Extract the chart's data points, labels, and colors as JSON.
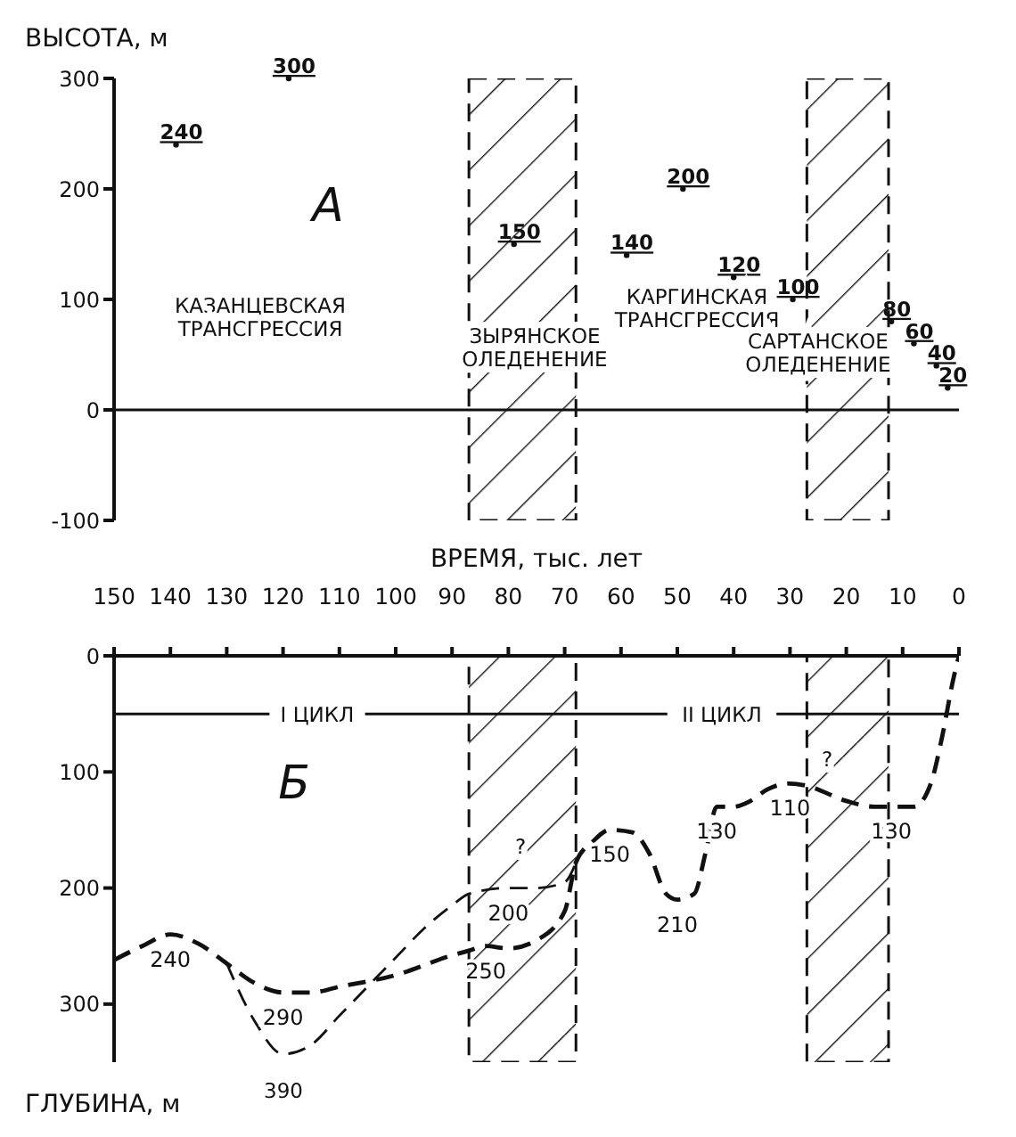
{
  "chart_data": [
    {
      "type": "scatter",
      "ylabel": "ВЫСОТА, м",
      "marker": "circle",
      "data_labels": true,
      "tick_labels": "y",
      "x": [
        139,
        119,
        79,
        59,
        49,
        40,
        29.5,
        12,
        8,
        4,
        2
      ],
      "values": [
        240,
        300,
        150,
        140,
        200,
        120,
        100,
        80,
        60,
        40,
        20
      ],
      "xlim": [
        150,
        0
      ],
      "ylim": [
        -100,
        300
      ],
      "yticks": [
        -100,
        0,
        100,
        200,
        300
      ],
      "ref_lines": [
        {
          "axis": "y",
          "value": 0
        }
      ],
      "bands": [
        {
          "axis": "x",
          "from": 87,
          "to": 68
        },
        {
          "axis": "x",
          "from": 27,
          "to": 12.5
        }
      ],
      "annotations": [
        "А",
        "КАЗАНЦЕВСКАЯ ТРАНСГРЕССИЯ",
        "ЗЫРЯНСКОЕ ОЛЕДЕНЕНИЕ",
        "КАРГИНСКАЯ ТРАНСГРЕССИЯ",
        "САРТАНСКОЕ ОЛЕДЕНЕНИЕ"
      ]
    },
    {
      "type": "line",
      "xlabel": "ВРЕМЯ, тыс. лет",
      "ylabel": "ГЛУБИНА, м",
      "marker": "none",
      "line_style": "dashed",
      "xlim": [
        150,
        0
      ],
      "xticks": [
        150,
        140,
        130,
        120,
        110,
        100,
        90,
        80,
        70,
        60,
        50,
        40,
        30,
        20,
        10,
        0
      ],
      "ylim": [
        350,
        0
      ],
      "yticks": [
        0,
        100,
        200,
        300
      ],
      "series": [
        {
          "color": "#111111",
          "x": [
            150,
            145,
            140,
            135,
            130,
            125,
            120,
            115,
            110,
            100,
            90,
            87,
            84,
            80,
            75,
            70,
            68,
            65,
            62,
            58,
            55,
            52,
            50,
            47,
            45,
            43,
            40,
            37,
            34,
            30,
            27,
            20,
            15,
            12,
            8,
            5,
            3,
            1,
            0
          ],
          "values": [
            262,
            250,
            240,
            248,
            265,
            282,
            290,
            290,
            285,
            275,
            258,
            254,
            250,
            252,
            245,
            220,
            178,
            160,
            150,
            152,
            170,
            205,
            210,
            205,
            170,
            130,
            130,
            125,
            115,
            110,
            112,
            125,
            130,
            130,
            130,
            110,
            70,
            20,
            0
          ],
          "value_labels": [
            null,
            null,
            "240",
            null,
            null,
            null,
            "290",
            null,
            null,
            null,
            null,
            null,
            "250",
            null,
            null,
            null,
            null,
            null,
            "150",
            null,
            null,
            null,
            "210",
            null,
            null,
            "130",
            null,
            null,
            null,
            "110",
            null,
            null,
            null,
            "130",
            null,
            null,
            null,
            null,
            null
          ]
        },
        {
          "color": "#111111",
          "x": [
            130,
            125,
            120,
            115,
            110,
            105,
            100,
            95,
            90,
            87,
            80,
            75,
            70,
            68
          ],
          "values": [
            265,
            315,
            343,
            335,
            310,
            285,
            260,
            235,
            215,
            205,
            200,
            200,
            195,
            178
          ],
          "value_labels": [
            null,
            null,
            null,
            null,
            null,
            null,
            null,
            null,
            null,
            null,
            "200",
            null,
            null,
            null
          ]
        }
      ],
      "ref_lines": [
        {
          "axis": "y",
          "value": 50
        }
      ],
      "bands": [
        {
          "axis": "x",
          "from": 87,
          "to": 68
        },
        {
          "axis": "x",
          "from": 27,
          "to": 12.5
        }
      ],
      "annotations": [
        "Б",
        "I ЦИКЛ",
        "II ЦИКЛ",
        "?",
        "?",
        "390"
      ]
    }
  ]
}
